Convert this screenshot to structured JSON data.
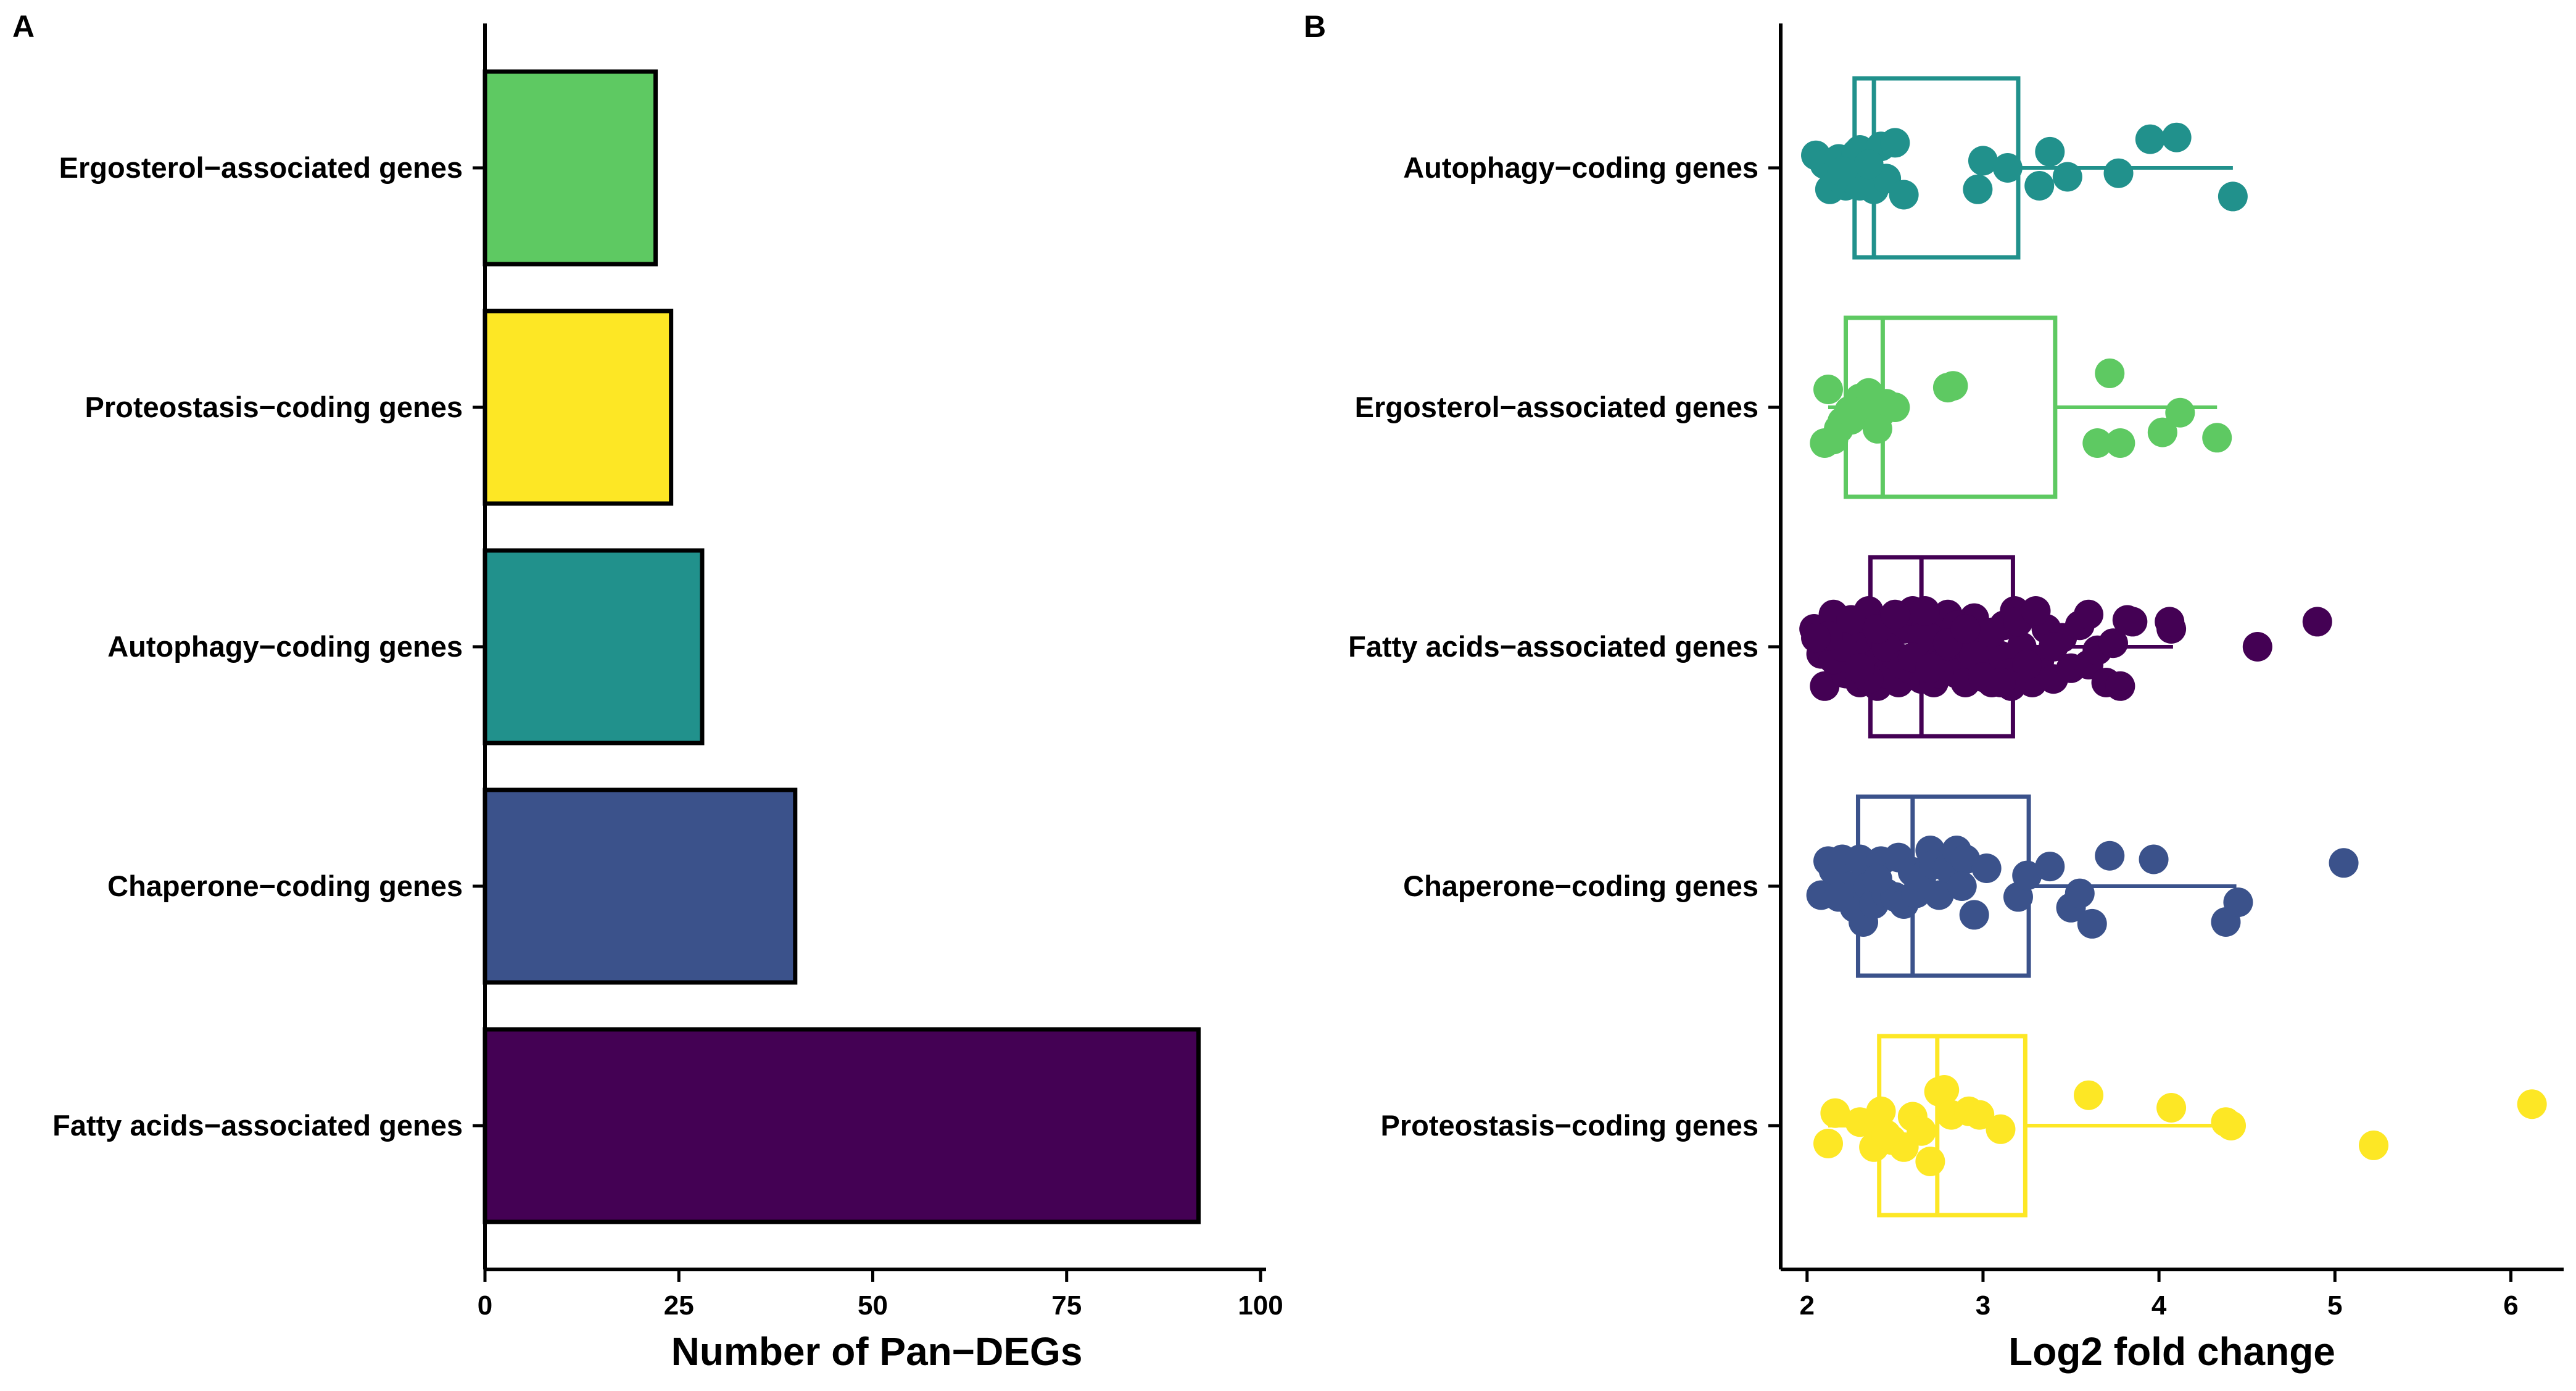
{
  "chart_data": [
    {
      "panel": "A",
      "type": "bar",
      "orientation": "horizontal",
      "categories": [
        "Ergosterol−associated genes",
        "Proteostasis−coding genes",
        "Autophagy−coding genes",
        "Chaperone−coding genes",
        "Fatty acids−associated genes"
      ],
      "values": [
        22,
        24,
        28,
        40,
        92
      ],
      "colors": [
        "#5EC962",
        "#FDE725",
        "#21918C",
        "#3B528B",
        "#440154"
      ],
      "xlabel": "Number of Pan−DEGs",
      "ylabel": "",
      "xlim": [
        0,
        100
      ],
      "xticks": [
        0,
        25,
        50,
        75,
        100
      ],
      "grid": false,
      "legend": "none"
    },
    {
      "panel": "B",
      "type": "boxplot",
      "orientation": "horizontal",
      "categories": [
        "Autophagy−coding genes",
        "Ergosterol−associated genes",
        "Fatty acids−associated genes",
        "Chaperone−coding genes",
        "Proteostasis−coding genes"
      ],
      "colors": [
        "#21918C",
        "#5EC962",
        "#440154",
        "#3B528B",
        "#FDE725"
      ],
      "xlabel": "Log2 fold change",
      "ylabel": "",
      "xlim": [
        1.85,
        6.3
      ],
      "xticks": [
        2,
        3,
        4,
        5,
        6
      ],
      "grid": false,
      "legend": "none",
      "boxes": [
        {
          "whisker_low": 2.2,
          "q1": 2.27,
          "median": 2.38,
          "q3": 3.2,
          "whisker_high": 4.42
        },
        {
          "whisker_low": 2.12,
          "q1": 2.22,
          "median": 2.43,
          "q3": 3.41,
          "whisker_high": 4.33
        },
        {
          "whisker_low": 2.03,
          "q1": 2.36,
          "median": 2.65,
          "q3": 3.17,
          "whisker_high": 4.08
        },
        {
          "whisker_low": 2.07,
          "q1": 2.29,
          "median": 2.6,
          "q3": 3.26,
          "whisker_high": 4.44
        },
        {
          "whisker_low": 2.12,
          "q1": 2.41,
          "median": 2.74,
          "q3": 3.24,
          "whisker_high": 4.4
        }
      ],
      "points": [
        [
          [
            2.05,
            -0.07
          ],
          [
            2.1,
            -0.02
          ],
          [
            2.13,
            0.12
          ],
          [
            2.18,
            -0.05
          ],
          [
            2.22,
            0.1
          ],
          [
            2.26,
            0.01
          ],
          [
            2.3,
            -0.1
          ],
          [
            2.34,
            0.03
          ],
          [
            2.38,
            0.12
          ],
          [
            2.42,
            -0.12
          ],
          [
            2.45,
            0.06
          ],
          [
            2.5,
            -0.14
          ],
          [
            2.25,
            0.06
          ],
          [
            2.3,
            0.1
          ],
          [
            2.28,
            -0.08
          ],
          [
            2.35,
            -0.02
          ],
          [
            2.2,
            0.02
          ],
          [
            2.97,
            0.12
          ],
          [
            3.0,
            -0.04
          ],
          [
            3.14,
            0.0
          ],
          [
            3.32,
            0.1
          ],
          [
            3.38,
            -0.09
          ],
          [
            3.48,
            0.05
          ],
          [
            3.77,
            0.03
          ],
          [
            3.95,
            -0.16
          ],
          [
            4.1,
            -0.17
          ],
          [
            4.42,
            0.16
          ],
          [
            2.55,
            0.15
          ]
        ],
        [
          [
            2.1,
            0.2
          ],
          [
            2.15,
            0.18
          ],
          [
            2.18,
            0.12
          ],
          [
            2.2,
            0.08
          ],
          [
            2.25,
            0.07
          ],
          [
            2.3,
            -0.05
          ],
          [
            2.35,
            -0.08
          ],
          [
            2.38,
            0.04
          ],
          [
            2.42,
            0.03
          ],
          [
            2.45,
            -0.02
          ],
          [
            2.5,
            0.0
          ],
          [
            2.8,
            -0.11
          ],
          [
            2.83,
            -0.12
          ],
          [
            2.12,
            -0.1
          ],
          [
            2.4,
            0.12
          ],
          [
            3.65,
            0.2
          ],
          [
            3.78,
            0.2
          ],
          [
            3.72,
            -0.19
          ],
          [
            4.02,
            0.14
          ],
          [
            4.12,
            0.03
          ],
          [
            4.33,
            0.17
          ],
          [
            2.24,
            0.02
          ]
        ],
        [
          [
            2.04,
            -0.1
          ],
          [
            2.08,
            0.04
          ],
          [
            2.1,
            0.22
          ],
          [
            2.12,
            0.01
          ],
          [
            2.15,
            -0.18
          ],
          [
            2.18,
            0.12
          ],
          [
            2.2,
            -0.05
          ],
          [
            2.22,
            0.15
          ],
          [
            2.25,
            0.05
          ],
          [
            2.28,
            -0.12
          ],
          [
            2.3,
            0.2
          ],
          [
            2.32,
            0.0
          ],
          [
            2.35,
            -0.2
          ],
          [
            2.38,
            0.1
          ],
          [
            2.4,
            0.22
          ],
          [
            2.42,
            -0.05
          ],
          [
            2.45,
            0.15
          ],
          [
            2.48,
            -0.15
          ],
          [
            2.5,
            0.05
          ],
          [
            2.52,
            0.2
          ],
          [
            2.55,
            -0.1
          ],
          [
            2.58,
            0.12
          ],
          [
            2.6,
            -0.2
          ],
          [
            2.62,
            0.05
          ],
          [
            2.65,
            0.18
          ],
          [
            2.68,
            -0.12
          ],
          [
            2.7,
            0.0
          ],
          [
            2.72,
            0.2
          ],
          [
            2.75,
            -0.05
          ],
          [
            2.78,
            0.1
          ],
          [
            2.8,
            -0.18
          ],
          [
            2.82,
            0.06
          ],
          [
            2.85,
            0.15
          ],
          [
            2.88,
            -0.08
          ],
          [
            2.9,
            0.2
          ],
          [
            2.92,
            0.02
          ],
          [
            2.95,
            -0.16
          ],
          [
            2.98,
            0.1
          ],
          [
            3.0,
            -0.03
          ],
          [
            3.05,
            0.2
          ],
          [
            3.1,
            0.05
          ],
          [
            3.12,
            -0.12
          ],
          [
            3.15,
            0.15
          ],
          [
            3.18,
            -0.2
          ],
          [
            3.22,
            0.0
          ],
          [
            3.28,
            0.2
          ],
          [
            3.32,
            0.08
          ],
          [
            3.36,
            -0.1
          ],
          [
            3.4,
            0.18
          ],
          [
            3.45,
            -0.05
          ],
          [
            3.5,
            0.12
          ],
          [
            3.55,
            -0.12
          ],
          [
            3.6,
            0.1
          ],
          [
            3.65,
            0.02
          ],
          [
            3.7,
            0.2
          ],
          [
            3.74,
            -0.02
          ],
          [
            3.78,
            0.22
          ],
          [
            3.82,
            -0.15
          ],
          [
            3.85,
            -0.14
          ],
          [
            4.07,
            -0.1
          ],
          [
            4.06,
            -0.14
          ],
          [
            4.56,
            0.0
          ],
          [
            4.9,
            -0.14
          ],
          [
            2.15,
            0.07
          ],
          [
            2.25,
            -0.15
          ],
          [
            2.35,
            0.18
          ],
          [
            2.45,
            0.0
          ],
          [
            2.55,
            0.1
          ],
          [
            2.65,
            -0.05
          ],
          [
            2.75,
            0.15
          ],
          [
            2.85,
            -0.12
          ],
          [
            2.95,
            0.05
          ],
          [
            3.05,
            -0.08
          ],
          [
            3.25,
            0.1
          ],
          [
            2.2,
            0.0
          ],
          [
            2.4,
            -0.1
          ],
          [
            2.6,
            0.06
          ],
          [
            2.8,
            -0.02
          ],
          [
            3.0,
            0.17
          ],
          [
            3.2,
            -0.14
          ],
          [
            3.4,
            0.0
          ],
          [
            3.3,
            -0.2
          ],
          [
            3.6,
            -0.18
          ],
          [
            3.16,
            0.22
          ],
          [
            2.12,
            -0.06
          ],
          [
            2.5,
            -0.18
          ],
          [
            2.7,
            0.12
          ],
          [
            2.9,
            -0.1
          ],
          [
            3.1,
            0.2
          ],
          [
            2.3,
            0.12
          ],
          [
            2.05,
            -0.05
          ],
          [
            2.67,
            -0.2
          ]
        ],
        [
          [
            2.08,
            0.05
          ],
          [
            2.12,
            -0.14
          ],
          [
            2.15,
            -0.09
          ],
          [
            2.2,
            -0.15
          ],
          [
            2.25,
            0.0
          ],
          [
            2.27,
            0.12
          ],
          [
            2.3,
            -0.15
          ],
          [
            2.32,
            0.2
          ],
          [
            2.35,
            0.0
          ],
          [
            2.38,
            0.1
          ],
          [
            2.42,
            -0.14
          ],
          [
            2.45,
            0.04
          ],
          [
            2.5,
            0.06
          ],
          [
            2.52,
            -0.16
          ],
          [
            2.55,
            0.1
          ],
          [
            2.6,
            -0.08
          ],
          [
            2.62,
            0.04
          ],
          [
            2.65,
            -0.05
          ],
          [
            2.7,
            -0.2
          ],
          [
            2.72,
            -0.12
          ],
          [
            2.75,
            0.05
          ],
          [
            2.8,
            -0.1
          ],
          [
            2.85,
            -0.2
          ],
          [
            2.9,
            -0.15
          ],
          [
            2.95,
            0.16
          ],
          [
            3.02,
            -0.1
          ],
          [
            3.2,
            0.06
          ],
          [
            3.25,
            -0.06
          ],
          [
            3.38,
            -0.11
          ],
          [
            3.5,
            0.12
          ],
          [
            3.55,
            0.04
          ],
          [
            3.62,
            0.21
          ],
          [
            3.72,
            -0.17
          ],
          [
            3.97,
            -0.15
          ],
          [
            4.38,
            0.2
          ],
          [
            4.45,
            0.09
          ],
          [
            5.05,
            -0.13
          ],
          [
            2.18,
            0.06
          ],
          [
            2.4,
            -0.04
          ],
          [
            2.88,
            0.0
          ]
        ],
        [
          [
            2.12,
            0.1
          ],
          [
            2.16,
            -0.07
          ],
          [
            2.38,
            0.12
          ],
          [
            2.4,
            0.0
          ],
          [
            2.42,
            -0.08
          ],
          [
            2.48,
            0.08
          ],
          [
            2.55,
            0.12
          ],
          [
            2.6,
            -0.05
          ],
          [
            2.65,
            0.03
          ],
          [
            2.7,
            0.2
          ],
          [
            2.75,
            -0.19
          ],
          [
            2.78,
            -0.2
          ],
          [
            2.82,
            -0.06
          ],
          [
            2.92,
            -0.08
          ],
          [
            2.98,
            -0.06
          ],
          [
            3.1,
            0.02
          ],
          [
            3.6,
            -0.17
          ],
          [
            4.07,
            -0.1
          ],
          [
            4.38,
            -0.02
          ],
          [
            4.41,
            0.0
          ],
          [
            5.22,
            0.11
          ],
          [
            6.12,
            -0.12
          ],
          [
            2.45,
            0.05
          ],
          [
            2.3,
            -0.02
          ]
        ]
      ]
    }
  ]
}
